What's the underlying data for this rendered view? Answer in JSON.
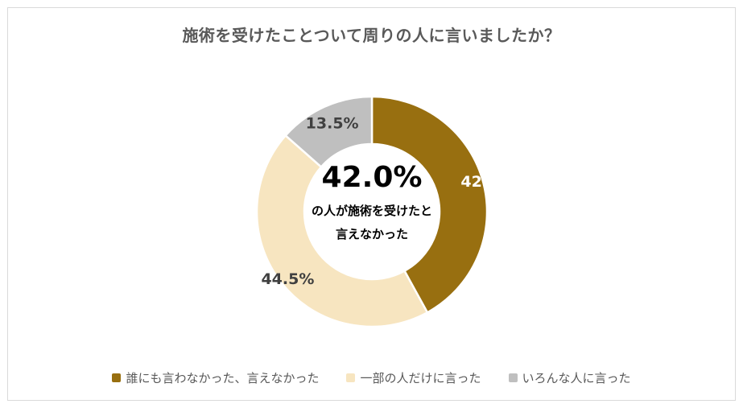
{
  "chart_data": {
    "type": "pie",
    "variant": "donut",
    "title": "施術を受けたことついて周りの人に言いましたか？",
    "categories": [
      "誰にも言わなかった、言えなかった",
      "一部の人だけに言った",
      "いろんな人に言った"
    ],
    "values": [
      42.0,
      44.5,
      13.5
    ],
    "value_labels": [
      "42.0%",
      "44.5%",
      "13.5%"
    ],
    "colors": [
      "#986f10",
      "#f7e5c0",
      "#bfbfbf"
    ],
    "label_colors": [
      "#ffffff",
      "#404040",
      "#404040"
    ],
    "center_text": {
      "value": "42.0%",
      "line1": "の人が施術を受けたと",
      "line2": "言えなかった"
    },
    "legend_position": "bottom"
  }
}
